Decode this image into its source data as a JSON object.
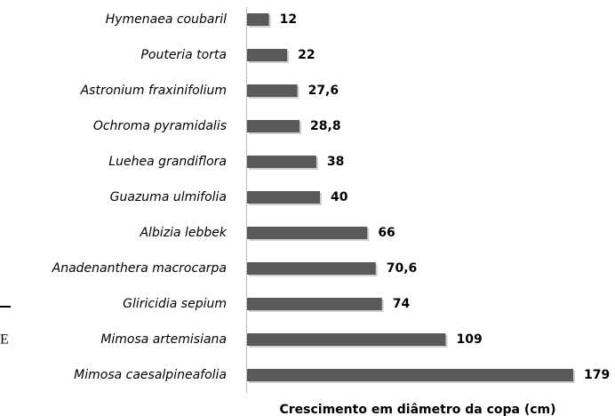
{
  "chart_data": {
    "type": "bar",
    "orientation": "horizontal",
    "x_label": "Crescimento em diâmetro da copa (cm)",
    "categories": [
      "Hymenaea coubaril",
      "Pouteria torta",
      "Astronium fraxinifolium",
      "Ochroma pyramidalis",
      "Luehea grandiflora",
      "Guazuma ulmifolia",
      "Albizia lebbek",
      "Anadenanthera macrocarpa",
      "Gliricidia sepium",
      "Mimosa artemisiana",
      "Mimosa caesalpineafolia"
    ],
    "values": [
      12,
      22,
      27.6,
      28.8,
      38,
      40,
      66,
      70.6,
      74,
      109,
      179
    ],
    "value_labels": [
      "12",
      "22",
      "27,6",
      "28,8",
      "38",
      "40",
      "66",
      "70,6",
      "74",
      "109",
      "179"
    ],
    "color": "#595959",
    "annotations": [
      "E"
    ]
  }
}
